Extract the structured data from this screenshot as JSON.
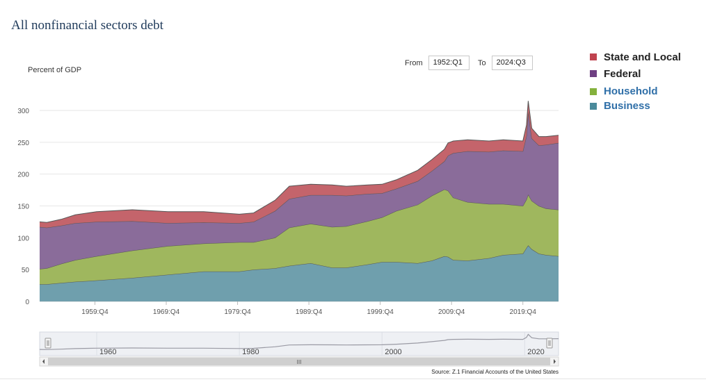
{
  "page": {
    "title": "All nonfinancial sectors debt"
  },
  "range": {
    "from_label": "From",
    "from_value": "1952:Q1",
    "to_label": "To",
    "to_value": "2024:Q3"
  },
  "source": "Source: Z.1 Financial Accounts of the United States",
  "colors": {
    "state_local": "#c4646b",
    "federal": "#8a6c9a",
    "household": "#9fb75e",
    "business": "#6f9fad",
    "legend_state_local": "#c0434f",
    "legend_federal": "#6e3f82",
    "legend_household": "#84b13c",
    "legend_business": "#4a8a9b"
  },
  "legend": [
    {
      "name": "State and Local",
      "text_color": "#222222"
    },
    {
      "name": "Federal",
      "text_color": "#222222"
    },
    {
      "name": "Household",
      "text_color": "#2f6fa8"
    },
    {
      "name": "Business",
      "text_color": "#2f6fa8"
    }
  ],
  "navigator_labels": [
    "1960",
    "1980",
    "2000",
    "2020"
  ],
  "navigator_scroll_label": "III",
  "chart_data": {
    "type": "area",
    "stacked": true,
    "ylabel": "Percent of GDP",
    "ylim": [
      0,
      300
    ],
    "yticks": [
      0,
      50,
      100,
      150,
      200,
      250,
      300
    ],
    "xlim": [
      1952.0,
      2024.75
    ],
    "xticks": [
      {
        "x": 1959.75,
        "label": "1959:Q4"
      },
      {
        "x": 1969.75,
        "label": "1969:Q4"
      },
      {
        "x": 1979.75,
        "label": "1979:Q4"
      },
      {
        "x": 1989.75,
        "label": "1989:Q4"
      },
      {
        "x": 1999.75,
        "label": "1999:Q4"
      },
      {
        "x": 2009.75,
        "label": "2009:Q4"
      },
      {
        "x": 2019.75,
        "label": "2019:Q4"
      }
    ],
    "x": [
      1952.0,
      1953,
      1955,
      1957,
      1960,
      1965,
      1970,
      1975,
      1980,
      1982,
      1985,
      1987,
      1990,
      1993,
      1995,
      1998,
      2000,
      2002,
      2005,
      2007,
      2008.75,
      2009.25,
      2010,
      2012,
      2015,
      2017,
      2019.75,
      2020.25,
      2020.5,
      2021,
      2022,
      2023,
      2024.75
    ],
    "series": [
      {
        "name": "Business",
        "values": [
          27,
          27,
          29,
          31,
          33,
          37,
          42,
          47,
          47,
          50,
          52,
          56,
          60,
          53,
          53,
          58,
          62,
          62,
          60,
          64,
          71,
          70,
          65,
          64,
          68,
          73,
          75,
          84,
          88,
          82,
          75,
          73,
          71
        ]
      },
      {
        "name": "Household",
        "values": [
          24,
          25,
          30,
          34,
          38,
          43,
          45,
          44,
          46,
          43,
          48,
          60,
          62,
          64,
          65,
          68,
          70,
          80,
          92,
          102,
          105,
          104,
          98,
          92,
          85,
          80,
          75,
          76,
          80,
          76,
          75,
          73,
          73
        ]
      },
      {
        "name": "Federal",
        "values": [
          66,
          64,
          60,
          58,
          54,
          46,
          36,
          33,
          30,
          32,
          42,
          45,
          45,
          50,
          48,
          43,
          38,
          35,
          37,
          39,
          44,
          55,
          70,
          80,
          82,
          84,
          86,
          100,
          130,
          98,
          95,
          100,
          105
        ]
      },
      {
        "name": "State and Local",
        "values": [
          8,
          8,
          10,
          13,
          16,
          18,
          18,
          17,
          14,
          14,
          17,
          20,
          17,
          16,
          15,
          14,
          14,
          14,
          17,
          18,
          19,
          20,
          19,
          18,
          17,
          17,
          16,
          17,
          17,
          16,
          14,
          13,
          12
        ]
      }
    ]
  }
}
